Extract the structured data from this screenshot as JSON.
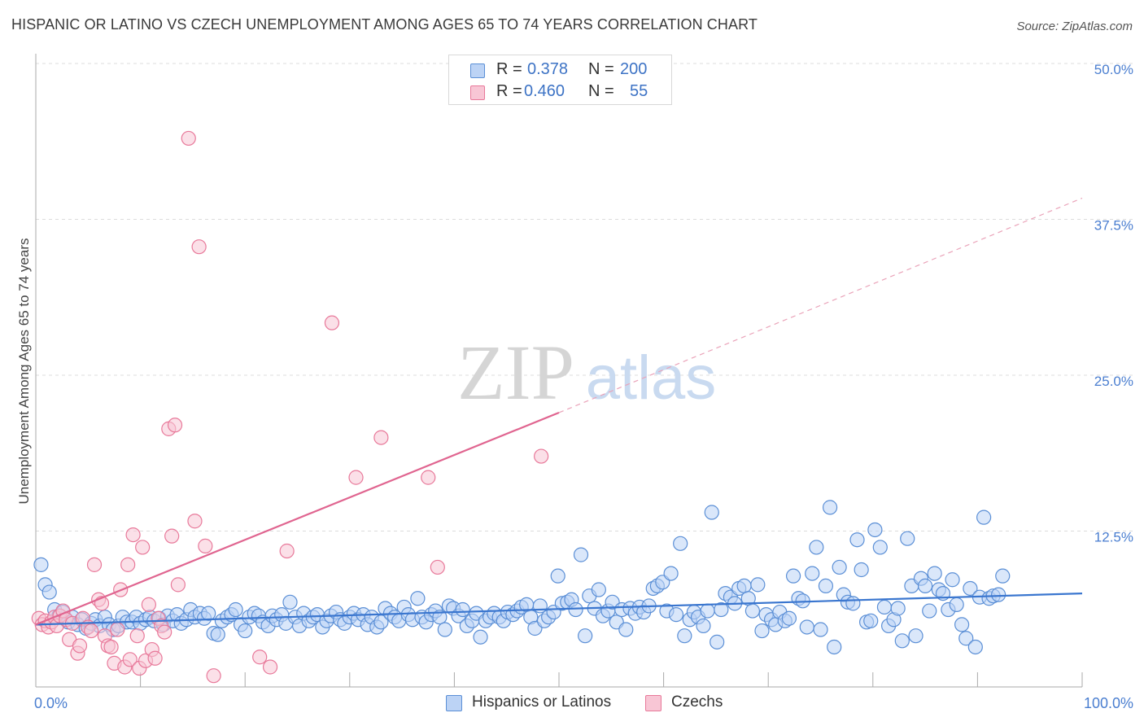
{
  "title": "HISPANIC OR LATINO VS CZECH UNEMPLOYMENT AMONG AGES 65 TO 74 YEARS CORRELATION CHART",
  "source": "Source: ZipAtlas.com",
  "watermark": {
    "zip": "ZIP",
    "atlas": "atlas"
  },
  "legend": {
    "rows": [
      {
        "r_label": "R =",
        "r_value": "0.378",
        "n_label": "N =",
        "n_value": "200",
        "color": "#5b8fd6",
        "fill": "#bcd3f5"
      },
      {
        "r_label": "R =",
        "r_value": "0.460",
        "n_label": "N =",
        "n_value": "55",
        "color": "#e8799a",
        "fill": "#f8c6d5"
      }
    ]
  },
  "bottom_legend": [
    {
      "label": "Hispanics or Latinos",
      "color": "#5b8fd6",
      "fill": "#bcd3f5"
    },
    {
      "label": "Czechs",
      "color": "#e8799a",
      "fill": "#f8c6d5"
    }
  ],
  "chart_data": {
    "type": "scatter",
    "title": "HISPANIC OR LATINO VS CZECH UNEMPLOYMENT AMONG AGES 65 TO 74 YEARS CORRELATION CHART",
    "xlabel": "",
    "ylabel": "Unemployment Among Ages 65 to 74 years",
    "xlim": [
      0,
      100
    ],
    "ylim": [
      0,
      50
    ],
    "x_tick_labels": [
      "0.0%",
      "100.0%"
    ],
    "y_ticks": [
      12.5,
      25.0,
      37.5,
      50.0
    ],
    "y_tick_labels": [
      "12.5%",
      "25.0%",
      "37.5%",
      "50.0%"
    ],
    "grid": "horizontal dashed",
    "legend_position": "top-center",
    "series": [
      {
        "name": "Hispanics or Latinos",
        "color": "#5b8fd6",
        "fill": "#bcd3f5",
        "trend": {
          "x0": 0,
          "y0": 5.0,
          "x1": 100,
          "y1": 7.5,
          "style": "solid"
        },
        "points": [
          [
            0.5,
            9.8
          ],
          [
            0.9,
            8.2
          ],
          [
            1.3,
            7.6
          ],
          [
            1.8,
            6.2
          ],
          [
            2.2,
            5.7
          ],
          [
            2.6,
            6.0
          ],
          [
            3.1,
            5.2
          ],
          [
            3.5,
            5.6
          ],
          [
            4.0,
            5.0
          ],
          [
            4.4,
            5.4
          ],
          [
            4.8,
            4.7
          ],
          [
            5.3,
            5.1
          ],
          [
            5.7,
            5.4
          ],
          [
            6.1,
            4.9
          ],
          [
            6.6,
            5.6
          ],
          [
            7.0,
            5.0
          ],
          [
            7.4,
            4.6
          ],
          [
            7.9,
            4.9
          ],
          [
            8.3,
            5.6
          ],
          [
            8.7,
            5.2
          ],
          [
            9.2,
            5.2
          ],
          [
            9.6,
            5.6
          ],
          [
            10.0,
            5.1
          ],
          [
            10.5,
            5.4
          ],
          [
            10.9,
            5.6
          ],
          [
            11.3,
            5.3
          ],
          [
            11.8,
            5.5
          ],
          [
            12.2,
            5.0
          ],
          [
            12.6,
            5.7
          ],
          [
            13.1,
            5.3
          ],
          [
            13.5,
            5.8
          ],
          [
            13.9,
            5.1
          ],
          [
            14.4,
            5.4
          ],
          [
            14.8,
            6.2
          ],
          [
            15.2,
            5.6
          ],
          [
            15.7,
            5.9
          ],
          [
            16.1,
            5.5
          ],
          [
            16.5,
            5.9
          ],
          [
            17.0,
            4.3
          ],
          [
            17.4,
            4.2
          ],
          [
            17.8,
            5.3
          ],
          [
            18.3,
            5.6
          ],
          [
            18.7,
            5.8
          ],
          [
            19.1,
            6.2
          ],
          [
            19.6,
            5.0
          ],
          [
            20.0,
            4.5
          ],
          [
            20.4,
            5.6
          ],
          [
            20.9,
            5.9
          ],
          [
            21.3,
            5.7
          ],
          [
            21.7,
            5.2
          ],
          [
            22.2,
            4.9
          ],
          [
            22.6,
            5.7
          ],
          [
            23.0,
            5.4
          ],
          [
            23.5,
            5.8
          ],
          [
            23.9,
            5.1
          ],
          [
            24.3,
            6.8
          ],
          [
            24.8,
            5.6
          ],
          [
            25.2,
            4.9
          ],
          [
            25.6,
            5.9
          ],
          [
            26.1,
            5.3
          ],
          [
            26.5,
            5.6
          ],
          [
            26.9,
            5.8
          ],
          [
            27.4,
            4.8
          ],
          [
            27.8,
            5.3
          ],
          [
            28.2,
            5.7
          ],
          [
            28.7,
            6.0
          ],
          [
            29.1,
            5.4
          ],
          [
            29.5,
            5.1
          ],
          [
            30.0,
            5.6
          ],
          [
            30.4,
            5.9
          ],
          [
            30.8,
            5.4
          ],
          [
            31.3,
            5.8
          ],
          [
            31.7,
            5.0
          ],
          [
            32.1,
            5.6
          ],
          [
            32.6,
            4.8
          ],
          [
            33.0,
            5.2
          ],
          [
            33.4,
            6.3
          ],
          [
            33.9,
            5.9
          ],
          [
            34.3,
            5.6
          ],
          [
            34.7,
            5.3
          ],
          [
            35.2,
            6.4
          ],
          [
            35.6,
            5.8
          ],
          [
            36.0,
            5.4
          ],
          [
            36.5,
            7.1
          ],
          [
            36.9,
            5.6
          ],
          [
            37.3,
            5.2
          ],
          [
            37.8,
            5.8
          ],
          [
            38.2,
            6.1
          ],
          [
            38.6,
            5.6
          ],
          [
            39.1,
            4.6
          ],
          [
            39.5,
            6.5
          ],
          [
            39.9,
            6.3
          ],
          [
            40.4,
            5.7
          ],
          [
            40.8,
            6.2
          ],
          [
            41.2,
            4.9
          ],
          [
            41.7,
            5.3
          ],
          [
            42.1,
            5.9
          ],
          [
            42.5,
            4.0
          ],
          [
            43.0,
            5.3
          ],
          [
            43.4,
            5.6
          ],
          [
            43.8,
            5.9
          ],
          [
            44.3,
            5.6
          ],
          [
            44.7,
            5.3
          ],
          [
            45.1,
            6.0
          ],
          [
            45.6,
            5.8
          ],
          [
            46.0,
            6.1
          ],
          [
            46.4,
            6.4
          ],
          [
            46.9,
            6.6
          ],
          [
            47.3,
            5.6
          ],
          [
            47.7,
            4.7
          ],
          [
            48.2,
            6.5
          ],
          [
            48.6,
            5.3
          ],
          [
            49.0,
            5.6
          ],
          [
            49.5,
            6.0
          ],
          [
            49.9,
            8.9
          ],
          [
            50.3,
            6.7
          ],
          [
            50.8,
            6.8
          ],
          [
            51.2,
            7.0
          ],
          [
            51.6,
            6.2
          ],
          [
            52.1,
            10.6
          ],
          [
            52.5,
            4.1
          ],
          [
            52.9,
            7.3
          ],
          [
            53.4,
            6.3
          ],
          [
            53.8,
            7.8
          ],
          [
            54.2,
            5.7
          ],
          [
            54.7,
            6.1
          ],
          [
            55.1,
            6.8
          ],
          [
            55.5,
            5.2
          ],
          [
            56.0,
            6.2
          ],
          [
            56.4,
            4.6
          ],
          [
            56.8,
            6.3
          ],
          [
            57.3,
            5.9
          ],
          [
            57.7,
            6.4
          ],
          [
            58.1,
            6.0
          ],
          [
            58.6,
            6.5
          ],
          [
            59.0,
            7.9
          ],
          [
            59.4,
            8.1
          ],
          [
            59.9,
            8.4
          ],
          [
            60.3,
            6.1
          ],
          [
            60.7,
            9.1
          ],
          [
            61.2,
            5.8
          ],
          [
            61.6,
            11.5
          ],
          [
            62.0,
            4.1
          ],
          [
            62.5,
            5.4
          ],
          [
            62.9,
            6.0
          ],
          [
            63.3,
            5.6
          ],
          [
            63.8,
            4.9
          ],
          [
            64.2,
            6.1
          ],
          [
            64.6,
            14.0
          ],
          [
            65.1,
            3.6
          ],
          [
            65.5,
            6.2
          ],
          [
            65.9,
            7.5
          ],
          [
            66.4,
            7.2
          ],
          [
            66.8,
            6.7
          ],
          [
            67.2,
            7.9
          ],
          [
            67.7,
            8.1
          ],
          [
            68.1,
            7.1
          ],
          [
            68.5,
            6.1
          ],
          [
            69.0,
            8.2
          ],
          [
            69.4,
            4.5
          ],
          [
            69.8,
            5.8
          ],
          [
            70.3,
            5.4
          ],
          [
            70.7,
            5.0
          ],
          [
            71.1,
            6.0
          ],
          [
            71.6,
            5.3
          ],
          [
            72.0,
            5.5
          ],
          [
            72.4,
            8.9
          ],
          [
            72.9,
            7.1
          ],
          [
            73.3,
            6.9
          ],
          [
            73.7,
            4.8
          ],
          [
            74.2,
            9.1
          ],
          [
            74.6,
            11.2
          ],
          [
            75.0,
            4.6
          ],
          [
            75.5,
            8.1
          ],
          [
            75.9,
            14.4
          ],
          [
            76.3,
            3.2
          ],
          [
            76.8,
            9.6
          ],
          [
            77.2,
            7.4
          ],
          [
            77.6,
            6.8
          ],
          [
            78.1,
            6.7
          ],
          [
            78.5,
            11.8
          ],
          [
            78.9,
            9.4
          ],
          [
            79.4,
            5.2
          ],
          [
            79.8,
            5.3
          ],
          [
            80.2,
            12.6
          ],
          [
            80.7,
            11.2
          ],
          [
            81.1,
            6.4
          ],
          [
            81.5,
            4.9
          ],
          [
            82.0,
            5.4
          ],
          [
            82.4,
            6.3
          ],
          [
            82.8,
            3.7
          ],
          [
            83.3,
            11.9
          ],
          [
            83.7,
            8.1
          ],
          [
            84.1,
            4.1
          ],
          [
            84.6,
            8.7
          ],
          [
            85.0,
            8.1
          ],
          [
            85.4,
            6.1
          ],
          [
            85.9,
            9.1
          ],
          [
            86.3,
            7.8
          ],
          [
            86.7,
            7.5
          ],
          [
            87.2,
            6.2
          ],
          [
            87.6,
            8.6
          ],
          [
            88.0,
            6.6
          ],
          [
            88.5,
            5.0
          ],
          [
            88.9,
            3.9
          ],
          [
            89.3,
            7.9
          ],
          [
            89.8,
            3.2
          ],
          [
            90.2,
            7.2
          ],
          [
            90.6,
            13.6
          ],
          [
            91.1,
            7.1
          ],
          [
            91.5,
            7.3
          ],
          [
            92.0,
            7.4
          ],
          [
            92.4,
            8.9
          ]
        ]
      },
      {
        "name": "Czechs",
        "color": "#e8799a",
        "fill": "#f8c6d5",
        "trend": {
          "x0": 0,
          "y0": 5.0,
          "x1": 50,
          "y1": 22.0,
          "style": "solid"
        },
        "trend_extension": {
          "x0": 50,
          "y0": 22.0,
          "x1": 100,
          "y1": 39.2,
          "style": "dashed"
        },
        "points": [
          [
            0.3,
            5.5
          ],
          [
            0.6,
            5.0
          ],
          [
            0.9,
            5.3
          ],
          [
            1.2,
            4.8
          ],
          [
            1.5,
            5.2
          ],
          [
            1.8,
            5.6
          ],
          [
            2.0,
            4.9
          ],
          [
            2.3,
            5.7
          ],
          [
            2.6,
            6.1
          ],
          [
            2.9,
            5.4
          ],
          [
            3.2,
            3.8
          ],
          [
            3.5,
            5.1
          ],
          [
            4.0,
            2.7
          ],
          [
            4.2,
            3.3
          ],
          [
            4.5,
            5.5
          ],
          [
            5.0,
            4.8
          ],
          [
            5.3,
            4.5
          ],
          [
            5.6,
            9.8
          ],
          [
            6.0,
            7.0
          ],
          [
            6.3,
            6.7
          ],
          [
            6.6,
            4.1
          ],
          [
            6.9,
            3.3
          ],
          [
            7.2,
            3.2
          ],
          [
            7.5,
            1.9
          ],
          [
            7.8,
            4.6
          ],
          [
            8.1,
            7.8
          ],
          [
            8.5,
            1.6
          ],
          [
            8.8,
            9.8
          ],
          [
            9.0,
            2.2
          ],
          [
            9.3,
            12.2
          ],
          [
            9.7,
            4.1
          ],
          [
            9.9,
            1.5
          ],
          [
            10.2,
            11.2
          ],
          [
            10.5,
            2.1
          ],
          [
            10.8,
            6.6
          ],
          [
            11.1,
            3.0
          ],
          [
            11.4,
            2.3
          ],
          [
            11.7,
            5.5
          ],
          [
            12.0,
            4.9
          ],
          [
            12.3,
            4.4
          ],
          [
            12.7,
            20.7
          ],
          [
            13.0,
            12.1
          ],
          [
            13.3,
            21.0
          ],
          [
            13.6,
            8.2
          ],
          [
            14.6,
            44.0
          ],
          [
            15.2,
            13.3
          ],
          [
            15.6,
            35.3
          ],
          [
            16.2,
            11.3
          ],
          [
            17.0,
            0.9
          ],
          [
            21.4,
            2.4
          ],
          [
            22.4,
            1.6
          ],
          [
            24.0,
            10.9
          ],
          [
            28.3,
            29.2
          ],
          [
            30.6,
            16.8
          ],
          [
            33.0,
            20.0
          ],
          [
            37.5,
            16.8
          ],
          [
            38.4,
            9.6
          ],
          [
            48.3,
            18.5
          ]
        ]
      }
    ]
  }
}
